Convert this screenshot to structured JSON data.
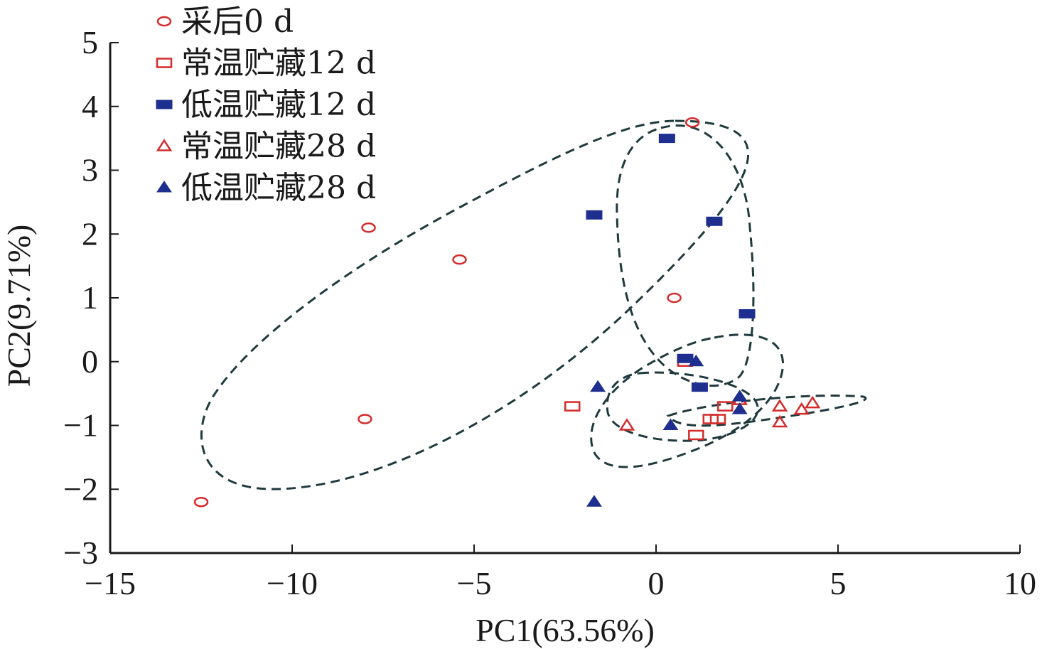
{
  "chart_data": {
    "type": "scatter",
    "xlabel": "PC1(63.56%)",
    "ylabel": "PC2(9.71%)",
    "xlim": [
      -15,
      10
    ],
    "ylim": [
      -3,
      5
    ],
    "xticks": [
      -15,
      -10,
      -5,
      0,
      5,
      10
    ],
    "yticks": [
      -3,
      -2,
      -1,
      0,
      1,
      2,
      3,
      4,
      5
    ],
    "xtick_labels": [
      "−15",
      "−10",
      "−5",
      "0",
      "5",
      "10"
    ],
    "ytick_labels": [
      "−3",
      "−2",
      "−1",
      "0",
      "1",
      "2",
      "3",
      "4",
      "5"
    ],
    "grid": false,
    "legend_position": "top-left",
    "series": [
      {
        "name": "采后0 d",
        "marker": "circle-open",
        "color": "#d42b2b",
        "points": [
          [
            1.0,
            3.75
          ],
          [
            -7.9,
            2.1
          ],
          [
            -5.4,
            1.6
          ],
          [
            0.5,
            1.0
          ],
          [
            -8.0,
            -0.9
          ],
          [
            -12.5,
            -2.2
          ]
        ]
      },
      {
        "name": "常温贮藏12 d",
        "marker": "square-open",
        "color": "#d42b2b",
        "points": [
          [
            0.8,
            0.0
          ],
          [
            -2.3,
            -0.7
          ],
          [
            1.9,
            -0.7
          ],
          [
            1.5,
            -0.9
          ],
          [
            1.7,
            -0.9
          ],
          [
            1.1,
            -1.15
          ]
        ]
      },
      {
        "name": "低温贮藏12 d",
        "marker": "square-filled",
        "color": "#1e2f8f",
        "points": [
          [
            0.3,
            3.5
          ],
          [
            -1.7,
            2.3
          ],
          [
            1.6,
            2.2
          ],
          [
            2.5,
            0.75
          ],
          [
            0.8,
            0.05
          ],
          [
            1.2,
            -0.4
          ]
        ]
      },
      {
        "name": "常温贮藏28 d",
        "marker": "triangle-open",
        "color": "#d42b2b",
        "points": [
          [
            -0.8,
            -1.0
          ],
          [
            2.3,
            -0.6
          ],
          [
            3.4,
            -0.7
          ],
          [
            4.0,
            -0.75
          ],
          [
            4.3,
            -0.65
          ],
          [
            3.4,
            -0.95
          ]
        ]
      },
      {
        "name": "低温贮藏28 d",
        "marker": "triangle-filled",
        "color": "#1e2f8f",
        "points": [
          [
            1.1,
            0.0
          ],
          [
            -1.6,
            -0.4
          ],
          [
            2.3,
            -0.55
          ],
          [
            2.3,
            -0.75
          ],
          [
            0.4,
            -1.0
          ],
          [
            -1.7,
            -2.2
          ]
        ]
      }
    ]
  }
}
